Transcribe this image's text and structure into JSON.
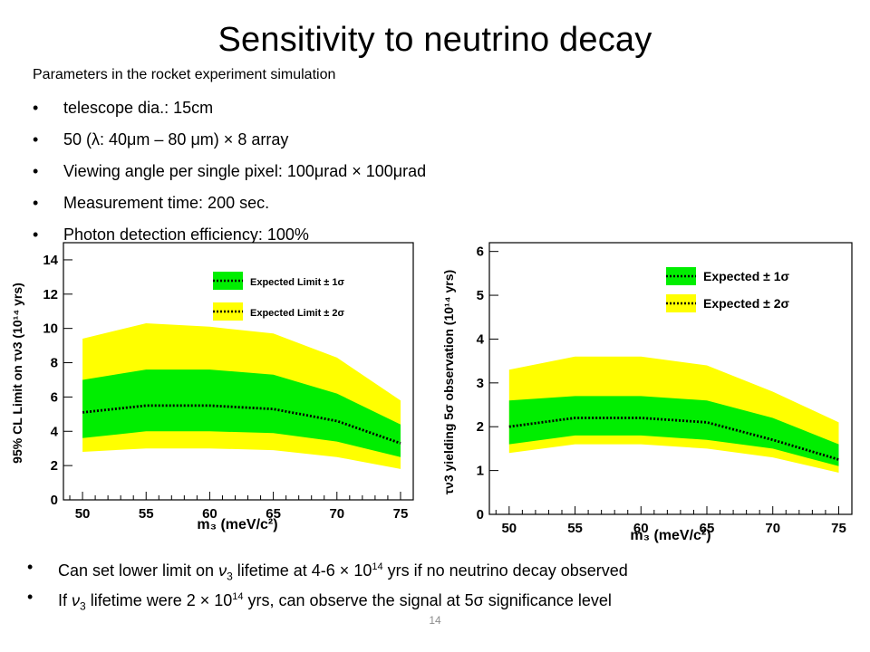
{
  "slide": {
    "title": "Sensitivity to neutrino decay",
    "subtitle": "Parameters in the rocket experiment simulation",
    "bullets": [
      "telescope dia.: 15cm",
      "50 (λ: 40μm – 80 μm) × 8 array",
      "Viewing angle per single pixel: 100μrad × 100μrad",
      "Measurement time: 200 sec.",
      "Photon detection efficiency: 100%"
    ],
    "bottom": {
      "b1_pre": "Can set lower limit on ",
      "b1_nu": "ν",
      "b1_nu_sub": "3",
      "b1_mid": " lifetime at 4-6 × 10",
      "b1_sup": "14",
      "b1_post": " yrs if no neutrino decay observed",
      "b2_pre": "If ",
      "b2_nu": "ν",
      "b2_nu_sub": "3",
      "b2_mid": " lifetime were 2 × 10",
      "b2_sup": "14",
      "b2_post": " yrs, can observe the signal at 5σ significance level"
    },
    "page_number": "14"
  },
  "colors": {
    "band_1sigma": "#00ee00",
    "band_2sigma": "#ffff00",
    "expected_line": "#000000"
  },
  "chart_data": [
    {
      "type": "area",
      "xlabel": "m₃ (meV/c²)",
      "ylabel": "95% CL Limit on τν3 (10¹⁴ yrs)",
      "x": [
        50,
        55,
        60,
        65,
        70,
        75
      ],
      "xticks": [
        50,
        55,
        60,
        65,
        70,
        75
      ],
      "yticks": [
        0,
        2,
        4,
        6,
        8,
        10,
        12,
        14
      ],
      "xlim": [
        48.5,
        76
      ],
      "ylim": [
        0,
        15
      ],
      "grid": false,
      "legend_position": "top-center",
      "series": [
        {
          "name": "Expected Limit ± 1σ",
          "low": [
            3.6,
            4.0,
            4.0,
            3.9,
            3.4,
            2.5
          ],
          "high": [
            7.0,
            7.6,
            7.6,
            7.3,
            6.2,
            4.4
          ]
        },
        {
          "name": "Expected Limit ± 2σ",
          "low": [
            2.8,
            3.0,
            3.0,
            2.9,
            2.5,
            1.8
          ],
          "high": [
            9.4,
            10.3,
            10.1,
            9.7,
            8.3,
            5.8
          ]
        },
        {
          "name": "Expected",
          "values": [
            5.1,
            5.5,
            5.5,
            5.3,
            4.6,
            3.3
          ]
        }
      ]
    },
    {
      "type": "area",
      "xlabel": "m₃ (meV/c²)",
      "ylabel": "τν3 yielding 5σ observation (10¹⁴ yrs)",
      "x": [
        50,
        55,
        60,
        65,
        70,
        75
      ],
      "xticks": [
        50,
        55,
        60,
        65,
        70,
        75
      ],
      "yticks": [
        0,
        1,
        2,
        3,
        4,
        5,
        6
      ],
      "xlim": [
        48.5,
        76
      ],
      "ylim": [
        0,
        6.2
      ],
      "grid": false,
      "legend_position": "top-right",
      "series": [
        {
          "name": "Expected ± 1σ",
          "low": [
            1.6,
            1.8,
            1.8,
            1.7,
            1.5,
            1.1
          ],
          "high": [
            2.6,
            2.7,
            2.7,
            2.6,
            2.2,
            1.6
          ]
        },
        {
          "name": "Expected ± 2σ",
          "low": [
            1.4,
            1.6,
            1.6,
            1.5,
            1.3,
            0.95
          ],
          "high": [
            3.3,
            3.6,
            3.6,
            3.4,
            2.8,
            2.1
          ]
        },
        {
          "name": "Expected",
          "values": [
            2.0,
            2.2,
            2.2,
            2.1,
            1.7,
            1.25
          ]
        }
      ]
    }
  ]
}
